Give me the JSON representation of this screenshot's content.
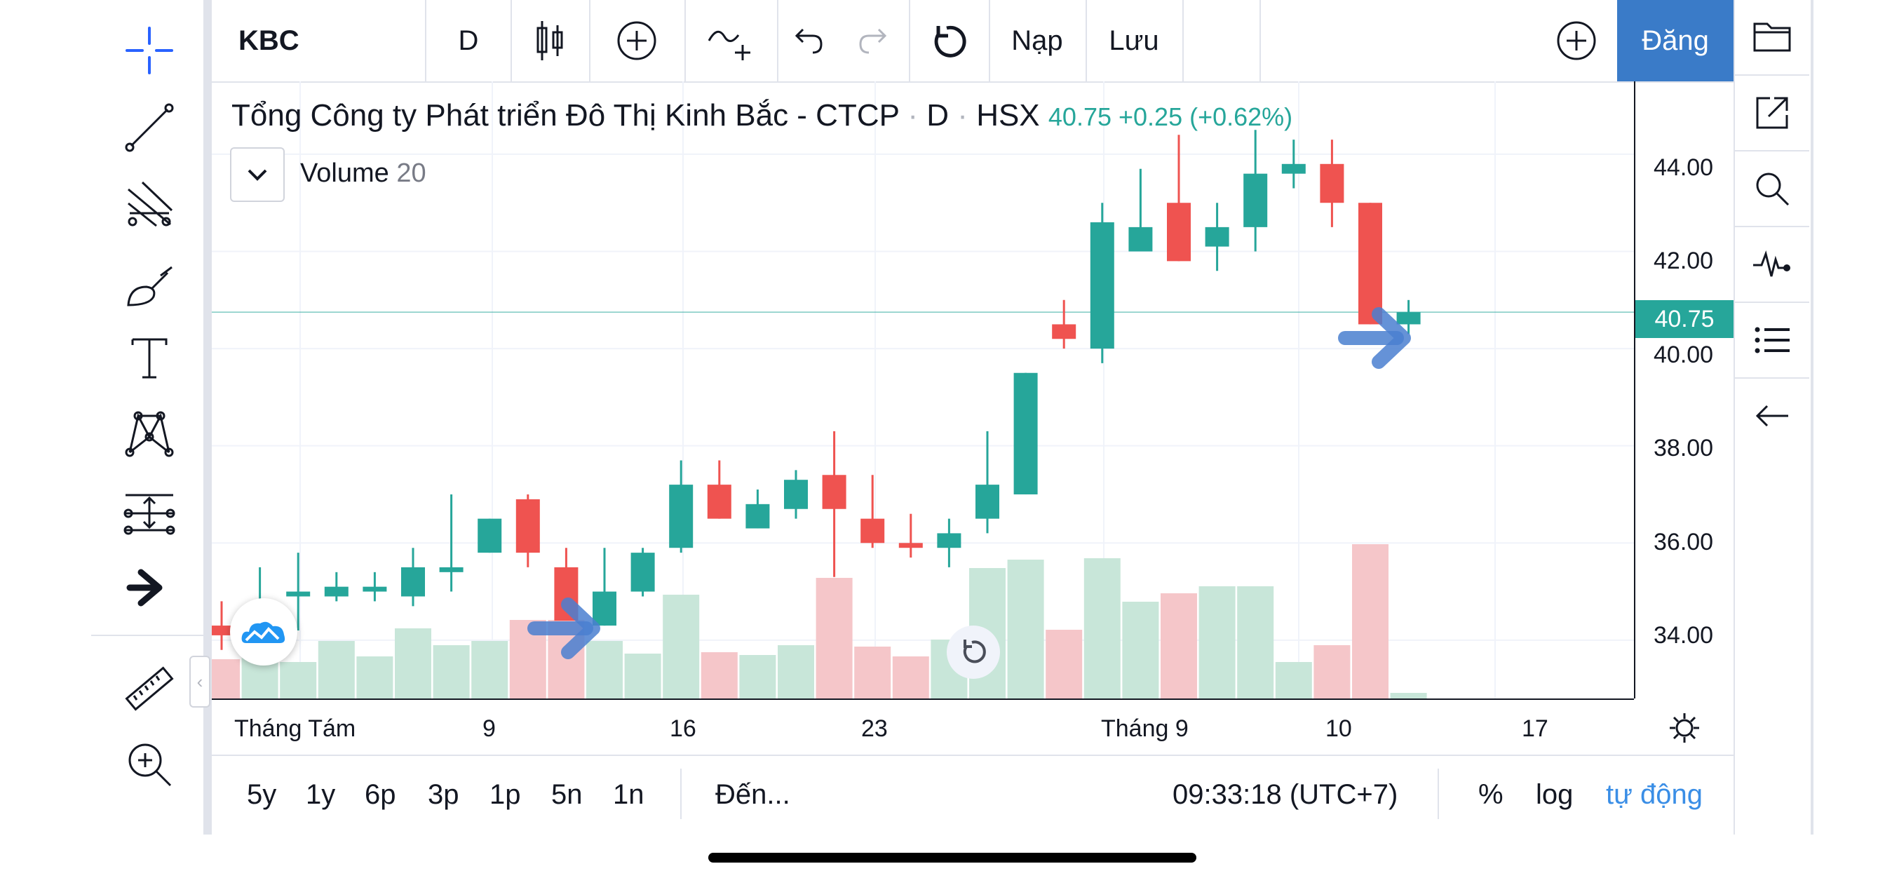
{
  "toolbar": {
    "symbol": "KBC",
    "interval": "D",
    "load_label": "Nạp",
    "save_label": "Lưu",
    "publish_label": "Đăng"
  },
  "legend": {
    "title": "Tổng Công ty Phát triển Đô Thị Kinh Bắc - CTCP",
    "interval": "D",
    "exchange": "HSX",
    "separator": "·",
    "price_change": "40.75 +0.25 (+0.62%)",
    "volume_name": "Volume",
    "volume_length": "20"
  },
  "price_scale": {
    "current_price": "40.75",
    "ticks": [
      "44.00",
      "42.00",
      "40.00",
      "38.00",
      "36.00",
      "34.00"
    ]
  },
  "time_scale": {
    "ticks": [
      "Tháng Tám",
      "9",
      "16",
      "23",
      "Tháng 9",
      "10",
      "17"
    ]
  },
  "bottom_bar": {
    "ranges": [
      "5y",
      "1y",
      "6p",
      "3p",
      "1p",
      "5n",
      "1n"
    ],
    "goto_label": "Đến...",
    "clock": "09:33:18 (UTC+7)",
    "percent_label": "%",
    "log_label": "log",
    "auto_label": "tự động"
  },
  "colors": {
    "up": "#26a69a",
    "down": "#ef5350",
    "up_volume": "#c8e6d9",
    "down_volume": "#f5c6c9",
    "accent": "#3a7bc8",
    "arrow": "#4a7fd0"
  },
  "chart_data": {
    "type": "candlestick",
    "ylim": [
      32.8,
      45.5
    ],
    "candles": [
      {
        "o": 34.3,
        "h": 34.8,
        "l": 33.8,
        "c": 34.1
      },
      {
        "o": 34.0,
        "h": 35.5,
        "l": 33.9,
        "c": 34.6
      },
      {
        "o": 34.9,
        "h": 35.8,
        "l": 34.2,
        "c": 35.0
      },
      {
        "o": 34.9,
        "h": 35.4,
        "l": 34.8,
        "c": 35.1
      },
      {
        "o": 35.0,
        "h": 35.4,
        "l": 34.8,
        "c": 35.1
      },
      {
        "o": 34.9,
        "h": 35.9,
        "l": 34.7,
        "c": 35.5
      },
      {
        "o": 35.4,
        "h": 37.0,
        "l": 35.0,
        "c": 35.5
      },
      {
        "o": 35.8,
        "h": 36.5,
        "l": 35.8,
        "c": 36.5
      },
      {
        "o": 36.9,
        "h": 37.0,
        "l": 35.5,
        "c": 35.8
      },
      {
        "o": 35.5,
        "h": 35.9,
        "l": 34.5,
        "c": 34.4
      },
      {
        "o": 34.3,
        "h": 35.9,
        "l": 34.3,
        "c": 35.0
      },
      {
        "o": 35.0,
        "h": 35.9,
        "l": 34.9,
        "c": 35.8
      },
      {
        "o": 35.9,
        "h": 37.7,
        "l": 35.8,
        "c": 37.2
      },
      {
        "o": 37.2,
        "h": 37.7,
        "l": 36.5,
        "c": 36.5
      },
      {
        "o": 36.3,
        "h": 37.1,
        "l": 36.3,
        "c": 36.8
      },
      {
        "o": 36.7,
        "h": 37.5,
        "l": 36.5,
        "c": 37.3
      },
      {
        "o": 37.4,
        "h": 38.3,
        "l": 35.3,
        "c": 36.7
      },
      {
        "o": 36.5,
        "h": 37.4,
        "l": 35.9,
        "c": 36.0
      },
      {
        "o": 36.0,
        "h": 36.6,
        "l": 35.7,
        "c": 35.9
      },
      {
        "o": 35.9,
        "h": 36.5,
        "l": 35.5,
        "c": 36.2
      },
      {
        "o": 36.5,
        "h": 38.3,
        "l": 36.2,
        "c": 37.2
      },
      {
        "o": 37.0,
        "h": 39.5,
        "l": 37.0,
        "c": 39.5
      },
      {
        "o": 40.5,
        "h": 41.0,
        "l": 40.0,
        "c": 40.2
      },
      {
        "o": 40.0,
        "h": 43.0,
        "l": 39.7,
        "c": 42.6
      },
      {
        "o": 42.0,
        "h": 43.7,
        "l": 42.0,
        "c": 42.5
      },
      {
        "o": 43.0,
        "h": 44.4,
        "l": 41.8,
        "c": 41.8
      },
      {
        "o": 42.1,
        "h": 43.0,
        "l": 41.6,
        "c": 42.5
      },
      {
        "o": 42.5,
        "h": 44.5,
        "l": 42.0,
        "c": 43.6
      },
      {
        "o": 43.6,
        "h": 44.3,
        "l": 43.3,
        "c": 43.8
      },
      {
        "o": 43.8,
        "h": 44.3,
        "l": 42.5,
        "c": 43.0
      },
      {
        "o": 43.0,
        "h": 43.0,
        "l": 40.5,
        "c": 40.5
      },
      {
        "o": 40.5,
        "h": 41.0,
        "l": 40.3,
        "c": 40.75
      }
    ],
    "volume": [
      0.28,
      0.3,
      0.26,
      0.41,
      0.3,
      0.5,
      0.38,
      0.41,
      0.56,
      0.56,
      0.41,
      0.32,
      0.74,
      0.33,
      0.31,
      0.38,
      0.86,
      0.37,
      0.3,
      0.42,
      0.93,
      0.99,
      0.49,
      1.0,
      0.69,
      0.75,
      0.8,
      0.8,
      0.26,
      0.38,
      1.1,
      0.04
    ]
  }
}
